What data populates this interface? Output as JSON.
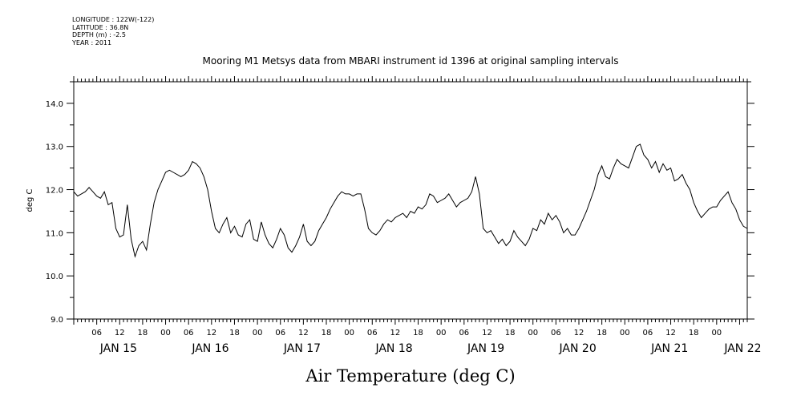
{
  "header": {
    "longitude": "LONGITUDE : 122W(-122)",
    "latitude": "LATITUDE : 36.8N",
    "depth": "DEPTH (m) : -2.5",
    "year": "YEAR : 2011"
  },
  "chart_data": {
    "type": "line",
    "title": "Mooring M1 Metsys data from MBARI instrument id 1396 at original sampling intervals",
    "xlabel": "Air Temperature (deg C)",
    "ylabel": "deg C",
    "ylim": [
      9.0,
      14.5
    ],
    "yticks": [
      "9.0",
      "10.0",
      "11.0",
      "12.0",
      "13.0",
      "14.0"
    ],
    "xlim_hours": [
      0,
      176
    ],
    "hour_tick_labels": [
      "06",
      "12",
      "18",
      "00",
      "06",
      "12",
      "18",
      "00",
      "06",
      "12",
      "18",
      "00",
      "06",
      "12",
      "18",
      "00",
      "06",
      "12",
      "18",
      "00",
      "06",
      "12",
      "18",
      "00",
      "06",
      "12",
      "18",
      "00"
    ],
    "day_labels": [
      "JAN 15",
      "JAN 16",
      "JAN 17",
      "JAN 18",
      "JAN 19",
      "JAN 20",
      "JAN 21",
      "JAN 22"
    ],
    "grid": false,
    "series": [
      {
        "x_hours": [
          0,
          1,
          2,
          3,
          4,
          5,
          6,
          7,
          8,
          9,
          10,
          11,
          12,
          13,
          14,
          15,
          16,
          17,
          18,
          19,
          20,
          21,
          22,
          23,
          24,
          25,
          26,
          27,
          28,
          29,
          30,
          31,
          32,
          33,
          34,
          35,
          36,
          37,
          38,
          39,
          40,
          41,
          42,
          43,
          44,
          45,
          46,
          47,
          48,
          49,
          50,
          51,
          52,
          53,
          54,
          55,
          56,
          57,
          58,
          59,
          60,
          61,
          62,
          63,
          64,
          65,
          66,
          67,
          68,
          69,
          70,
          71,
          72,
          73,
          74,
          75,
          76,
          77,
          78,
          79,
          80,
          81,
          82,
          83,
          84,
          85,
          86,
          87,
          88,
          89,
          90,
          91,
          92,
          93,
          94,
          95,
          96,
          97,
          98,
          99,
          100,
          101,
          102,
          103,
          104,
          105,
          106,
          107,
          108,
          109,
          110,
          111,
          112,
          113,
          114,
          115,
          116,
          117,
          118,
          119,
          120,
          121,
          122,
          123,
          124,
          125,
          126,
          127,
          128,
          129,
          130,
          131,
          132,
          133,
          134,
          135,
          136,
          137,
          138,
          139,
          140,
          141,
          142,
          143,
          144,
          145,
          146,
          147,
          148,
          149,
          150,
          151,
          152,
          153,
          154,
          155,
          156,
          157,
          158,
          159,
          160,
          161,
          162,
          163,
          164,
          165,
          166,
          167,
          168,
          169,
          170,
          171,
          172,
          173,
          174,
          175,
          176
        ],
        "values": [
          11.95,
          11.85,
          11.9,
          11.95,
          12.05,
          11.95,
          11.85,
          11.8,
          11.95,
          11.65,
          11.7,
          11.1,
          10.9,
          10.95,
          11.65,
          10.85,
          10.45,
          10.7,
          10.8,
          10.6,
          11.2,
          11.7,
          12.0,
          12.2,
          12.4,
          12.45,
          12.4,
          12.35,
          12.3,
          12.35,
          12.45,
          12.65,
          12.6,
          12.5,
          12.3,
          12.0,
          11.5,
          11.1,
          11.0,
          11.2,
          11.35,
          11.0,
          11.15,
          10.95,
          10.9,
          11.2,
          11.3,
          10.85,
          10.8,
          11.25,
          10.95,
          10.75,
          10.65,
          10.85,
          11.1,
          10.95,
          10.65,
          10.55,
          10.7,
          10.9,
          11.2,
          10.8,
          10.7,
          10.8,
          11.05,
          11.2,
          11.35,
          11.55,
          11.7,
          11.85,
          11.95,
          11.9,
          11.9,
          11.85,
          11.9,
          11.9,
          11.55,
          11.1,
          11.0,
          10.95,
          11.05,
          11.2,
          11.3,
          11.25,
          11.35,
          11.4,
          11.45,
          11.35,
          11.5,
          11.45,
          11.6,
          11.55,
          11.65,
          11.9,
          11.85,
          11.7,
          11.75,
          11.8,
          11.9,
          11.75,
          11.6,
          11.7,
          11.75,
          11.8,
          11.95,
          12.3,
          11.9,
          11.1,
          11.0,
          11.05,
          10.9,
          10.75,
          10.85,
          10.7,
          10.8,
          11.05,
          10.9,
          10.8,
          10.7,
          10.85,
          11.1,
          11.05,
          11.3,
          11.2,
          11.45,
          11.3,
          11.4,
          11.25,
          11.0,
          11.1,
          10.95,
          10.95,
          11.1,
          11.3,
          11.5,
          11.75,
          12.0,
          12.35,
          12.55,
          12.3,
          12.25,
          12.5,
          12.7,
          12.6,
          12.55,
          12.5,
          12.75,
          13.0,
          13.05,
          12.8,
          12.7,
          12.5,
          12.65,
          12.4,
          12.6,
          12.45,
          12.5,
          12.2,
          12.25,
          12.35,
          12.15,
          12.0,
          11.7,
          11.5,
          11.35,
          11.45,
          11.55,
          11.6,
          11.6,
          11.75,
          11.85,
          11.95,
          11.7,
          11.55,
          11.3,
          11.15,
          11.1
        ]
      }
    ]
  }
}
